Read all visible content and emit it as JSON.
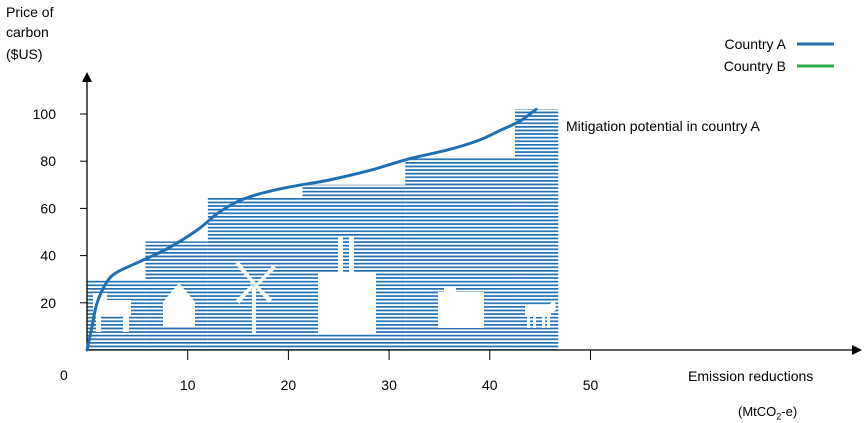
{
  "chart_data": {
    "type": "line",
    "title": "",
    "ylabel_lines": [
      "Price of",
      "carbon",
      "($US)"
    ],
    "xlabel": "Emission reductions",
    "xlabel_unit_prefix": "(MtCO",
    "xlabel_unit_sub": "2",
    "xlabel_unit_suffix": "-e)",
    "origin_label": "0",
    "x_ticks": [
      10,
      20,
      30,
      40,
      50
    ],
    "y_ticks": [
      20,
      40,
      60,
      80,
      100
    ],
    "xlim": [
      0,
      77
    ],
    "ylim": [
      0,
      135
    ],
    "annotation": "Mitigation potential in country A",
    "legend_position": "top-right",
    "series": [
      {
        "name": "Country A",
        "color": "#1f6fb4",
        "x": [
          0,
          0.5,
          1,
          2,
          3,
          5,
          8,
          11,
          13,
          15,
          17,
          20,
          24,
          28,
          32,
          36,
          39,
          41,
          43,
          44.6
        ],
        "y": [
          0,
          10,
          20,
          29,
          33,
          37,
          43,
          51,
          58,
          63,
          66,
          69,
          72,
          76,
          81,
          85,
          89,
          93,
          97,
          102
        ]
      },
      {
        "name": "Country B",
        "color": "#2eaa4f",
        "x": [],
        "y": []
      }
    ],
    "steps": [
      {
        "x0": 0,
        "x1": 5.8,
        "y": 30
      },
      {
        "x0": 5.8,
        "x1": 12,
        "y": 46
      },
      {
        "x0": 12,
        "x1": 21.4,
        "y": 65
      },
      {
        "x0": 21.4,
        "x1": 31.6,
        "y": 70
      },
      {
        "x0": 31.6,
        "x1": 42.5,
        "y": 82
      },
      {
        "x0": 42.5,
        "x1": 46.8,
        "y": 102
      }
    ],
    "step_color": "#1f6fb4",
    "icons": [
      "truck-icon",
      "house-icon",
      "wind-turbine-icon",
      "factory-icon",
      "tractor-icon",
      "cow-icon"
    ]
  }
}
